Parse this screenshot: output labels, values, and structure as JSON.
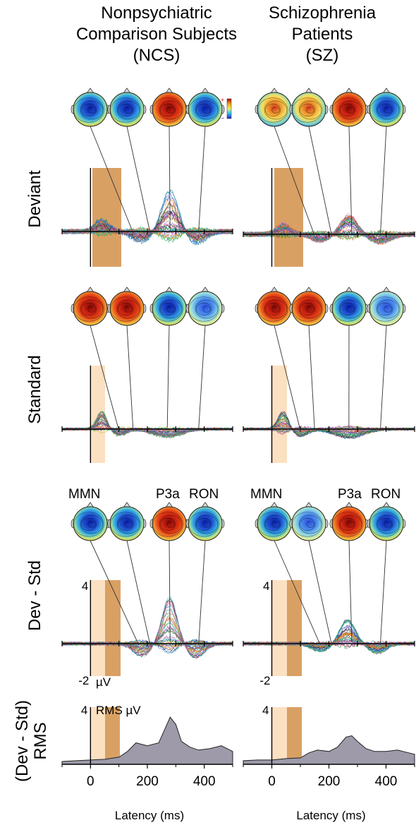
{
  "columns": [
    {
      "title_lines": [
        "Nonpsychiatric",
        "Comparison Subjects",
        "(NCS)"
      ]
    },
    {
      "title_lines": [
        "Schizophrenia",
        "Patients",
        "(SZ)"
      ]
    }
  ],
  "rows": {
    "deviant": "Deviant",
    "standard": "Standard",
    "diff": "Dev - Std",
    "rms_line1": "(Dev - Std)",
    "rms_line2": "RMS"
  },
  "component_labels": [
    "MMN",
    "P3a",
    "RON"
  ],
  "colorbar": {
    "plus": "+",
    "minus": "–"
  },
  "diff_axis": {
    "top": "4",
    "bottom": "-2",
    "unit": "µV"
  },
  "rms_axis": {
    "top": "4",
    "unit": "RMS µV"
  },
  "latency_axis": {
    "label": "Latency (ms)",
    "ticks": [
      "0",
      "200",
      "400"
    ]
  },
  "colors": {
    "deviant_window": "#d9a064",
    "standard_window": "#fce0c2",
    "rms_fill": "#9e9aaa",
    "scalp_negative": "#1f4fd1",
    "scalp_positive": "#e23b14"
  },
  "chart_data": [
    {
      "type": "area",
      "title": "",
      "panel": "NCS (Dev - Std) RMS",
      "xlabel": "Latency (ms)",
      "ylabel": "RMS µV",
      "x": [
        -100,
        -50,
        0,
        50,
        100,
        130,
        160,
        200,
        240,
        260,
        280,
        300,
        320,
        350,
        380,
        420,
        460,
        500
      ],
      "values": [
        0.2,
        0.25,
        0.3,
        0.35,
        0.5,
        0.9,
        1.5,
        1.3,
        1.5,
        2.4,
        3.3,
        2.8,
        1.6,
        1.2,
        1.0,
        1.1,
        1.3,
        0.9
      ],
      "xlim": [
        -100,
        500
      ],
      "ylim": [
        0,
        4
      ]
    },
    {
      "type": "area",
      "title": "",
      "panel": "SZ (Dev - Std) RMS",
      "xlabel": "Latency (ms)",
      "ylabel": "",
      "x": [
        -100,
        -50,
        0,
        50,
        100,
        130,
        160,
        200,
        230,
        260,
        280,
        300,
        330,
        360,
        400,
        440,
        480,
        500
      ],
      "values": [
        0.25,
        0.3,
        0.3,
        0.4,
        0.45,
        0.8,
        1.0,
        0.9,
        1.2,
        1.9,
        2.0,
        1.6,
        1.1,
        0.9,
        0.9,
        1.0,
        0.8,
        0.7
      ],
      "xlim": [
        -100,
        500
      ],
      "ylim": [
        0,
        4
      ]
    }
  ]
}
